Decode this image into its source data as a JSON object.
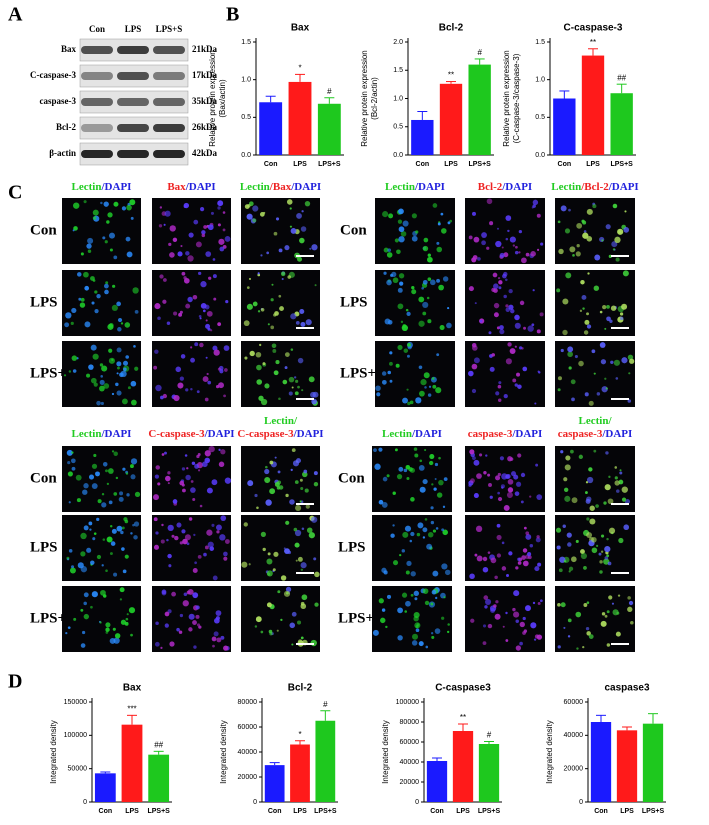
{
  "panel_labels": [
    "A",
    "B",
    "C",
    "D"
  ],
  "blot": {
    "lanes": [
      "Con",
      "LPS",
      "LPS+S"
    ],
    "proteins": [
      "Bax",
      "C-caspase-3",
      "caspase-3",
      "Bcl-2",
      "β-actin"
    ],
    "sizes": [
      "21kDa",
      "17kDa",
      "35kDa",
      "26kDa",
      "42kDa"
    ]
  },
  "imaging": [
    {
      "headers": [
        [
          [
            {
              "text": "Lectin",
              "color": "#22cc22"
            },
            {
              "text": "/DAPI",
              "color": "#2222dd"
            }
          ]
        ],
        [
          [
            {
              "text": "Bax",
              "color": "#ee2222"
            },
            {
              "text": "/DAPI",
              "color": "#2222dd"
            }
          ]
        ],
        [
          [
            {
              "text": "Lectin",
              "color": "#22cc22"
            },
            {
              "text": "/Bax",
              "color": "#ee2222"
            },
            {
              "text": "/DAPI",
              "color": "#2222dd"
            }
          ]
        ]
      ],
      "rows": [
        "Con",
        "LPS",
        "LPS+S"
      ]
    },
    {
      "headers": [
        [
          [
            {
              "text": "Lectin",
              "color": "#22cc22"
            },
            {
              "text": "/DAPI",
              "color": "#2222dd"
            }
          ]
        ],
        [
          [
            {
              "text": "Bcl-2",
              "color": "#ee2222"
            },
            {
              "text": "/DAPI",
              "color": "#2222dd"
            }
          ]
        ],
        [
          [
            {
              "text": "Lectin",
              "color": "#22cc22"
            },
            {
              "text": "/Bcl-2",
              "color": "#ee2222"
            },
            {
              "text": "/DAPI",
              "color": "#2222dd"
            }
          ]
        ]
      ],
      "rows": [
        "Con",
        "LPS",
        "LPS+S"
      ]
    },
    {
      "headers": [
        [
          [
            {
              "text": "Lectin",
              "color": "#22cc22"
            },
            {
              "text": "/DAPI",
              "color": "#2222dd"
            }
          ]
        ],
        [
          [
            {
              "text": "C-caspase-3",
              "color": "#ee2222"
            },
            {
              "text": "/DAPI",
              "color": "#2222dd"
            }
          ]
        ],
        [
          [
            {
              "text": "Lectin/",
              "color": "#22cc22"
            }
          ],
          [
            {
              "text": "C-caspase-3",
              "color": "#ee2222"
            },
            {
              "text": "/DAPI",
              "color": "#2222dd"
            }
          ]
        ]
      ],
      "rows": [
        "Con",
        "LPS",
        "LPS+S"
      ]
    },
    {
      "headers": [
        [
          [
            {
              "text": "Lectin",
              "color": "#22cc22"
            },
            {
              "text": "/DAPI",
              "color": "#2222dd"
            }
          ]
        ],
        [
          [
            {
              "text": "caspase-3",
              "color": "#ee2222"
            },
            {
              "text": "/DAPI",
              "color": "#2222dd"
            }
          ]
        ],
        [
          [
            {
              "text": "Lectin/",
              "color": "#22cc22"
            }
          ],
          [
            {
              "text": "caspase-3",
              "color": "#ee2222"
            },
            {
              "text": "/DAPI",
              "color": "#2222dd"
            }
          ]
        ]
      ],
      "rows": [
        "Con",
        "LPS",
        "LPS+S"
      ]
    }
  ],
  "chart_data": [
    {
      "type": "bar",
      "title": "Bax",
      "y_label": [
        "Relative protein expression",
        "(Bax/actin)"
      ],
      "categories": [
        "Con",
        "LPS",
        "LPS+S"
      ],
      "values": [
        0.7,
        0.97,
        0.68
      ],
      "errors": [
        0.08,
        0.1,
        0.08
      ],
      "annotations": [
        null,
        "*",
        "#"
      ],
      "colors": [
        "#1a1aff",
        "#ff1a1a",
        "#1ec81e"
      ],
      "ylim": [
        0,
        1.5
      ],
      "yticks": [
        {
          "value": 0,
          "label": "0.0"
        },
        {
          "value": 0.5,
          "label": "0.5"
        },
        {
          "value": 1,
          "label": "1.0"
        },
        {
          "value": 1.5,
          "label": "1.5"
        }
      ]
    },
    {
      "type": "bar",
      "title": "Bcl-2",
      "y_label": [
        "Relative protein expression",
        "(Bcl-2/actin)"
      ],
      "categories": [
        "Con",
        "LPS",
        "LPS+S"
      ],
      "values": [
        0.62,
        1.26,
        1.6
      ],
      "errors": [
        0.15,
        0.04,
        0.1
      ],
      "annotations": [
        null,
        "**",
        "#"
      ],
      "colors": [
        "#1a1aff",
        "#ff1a1a",
        "#1ec81e"
      ],
      "ylim": [
        0,
        2
      ],
      "yticks": [
        {
          "value": 0,
          "label": "0.0"
        },
        {
          "value": 0.5,
          "label": "0.5"
        },
        {
          "value": 1,
          "label": "1.0"
        },
        {
          "value": 1.5,
          "label": "1.5"
        },
        {
          "value": 2,
          "label": "2.0"
        }
      ]
    },
    {
      "type": "bar",
      "title": "C-caspase-3",
      "y_label": [
        "Relative protein expression",
        "(C-caspase-3/caspase-3)"
      ],
      "categories": [
        "Con",
        "LPS",
        "LPS+S"
      ],
      "values": [
        0.75,
        1.32,
        0.82
      ],
      "errors": [
        0.1,
        0.09,
        0.12
      ],
      "annotations": [
        null,
        "**",
        "##"
      ],
      "colors": [
        "#1a1aff",
        "#ff1a1a",
        "#1ec81e"
      ],
      "ylim": [
        0,
        1.5
      ],
      "yticks": [
        {
          "value": 0,
          "label": "0.0"
        },
        {
          "value": 0.5,
          "label": "0.5"
        },
        {
          "value": 1,
          "label": "1.0"
        },
        {
          "value": 1.5,
          "label": "1.5"
        }
      ]
    },
    {
      "type": "bar",
      "title": "Bax",
      "y_label": [
        "Integrated density"
      ],
      "categories": [
        "Con",
        "LPS",
        "LPS+S"
      ],
      "values": [
        43000,
        116000,
        71000
      ],
      "errors": [
        2000,
        14000,
        5000
      ],
      "annotations": [
        null,
        "***",
        "##"
      ],
      "colors": [
        "#1a1aff",
        "#ff1a1a",
        "#1ec81e"
      ],
      "ylim": [
        0,
        150000
      ],
      "yticks": [
        0,
        50000,
        100000,
        150000
      ]
    },
    {
      "type": "bar",
      "title": "Bcl-2",
      "y_label": [
        "Integrated density"
      ],
      "categories": [
        "Con",
        "LPS",
        "LPS+S"
      ],
      "values": [
        29500,
        46000,
        65000
      ],
      "errors": [
        2000,
        3000,
        8000
      ],
      "annotations": [
        null,
        "*",
        "#"
      ],
      "colors": [
        "#1a1aff",
        "#ff1a1a",
        "#1ec81e"
      ],
      "ylim": [
        0,
        80000
      ],
      "yticks": [
        0,
        20000,
        40000,
        60000,
        80000
      ]
    },
    {
      "type": "bar",
      "title": "C-caspase3",
      "y_label": [
        "Integrated density"
      ],
      "categories": [
        "Con",
        "LPS",
        "LPS+S"
      ],
      "values": [
        41000,
        71000,
        58000
      ],
      "errors": [
        3000,
        7000,
        2500
      ],
      "annotations": [
        null,
        "**",
        "#"
      ],
      "colors": [
        "#1a1aff",
        "#ff1a1a",
        "#1ec81e"
      ],
      "ylim": [
        0,
        100000
      ],
      "yticks": [
        0,
        20000,
        40000,
        60000,
        80000,
        100000
      ]
    },
    {
      "type": "bar",
      "title": "caspase3",
      "y_label": [
        "Integrated density"
      ],
      "categories": [
        "Con",
        "LPS",
        "LPS+S"
      ],
      "values": [
        48000,
        43000,
        47000
      ],
      "errors": [
        4000,
        2000,
        6000
      ],
      "annotations": [
        null,
        null,
        null
      ],
      "colors": [
        "#1a1aff",
        "#ff1a1a",
        "#1ec81e"
      ],
      "ylim": [
        0,
        60000
      ],
      "yticks": [
        0,
        20000,
        40000,
        60000
      ]
    }
  ]
}
